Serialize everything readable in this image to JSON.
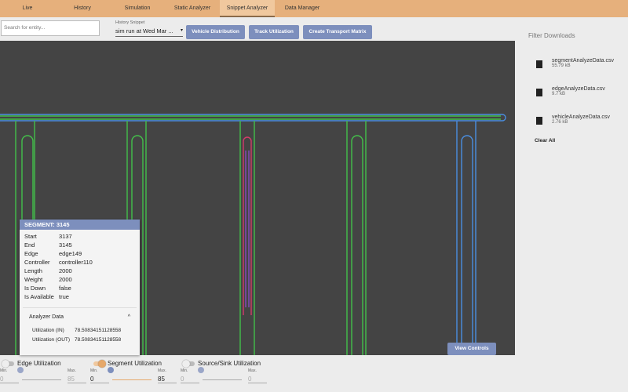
{
  "nav": {
    "tabs": [
      "Live",
      "History",
      "Simulation",
      "Static Analyzer",
      "Snippet Analyzer",
      "Data Manager"
    ],
    "active": 4
  },
  "toolbar": {
    "search_placeholder": "Search for entity...",
    "snippet_label": "History Snippet",
    "snippet_value": "sim run at Wed Mar ...",
    "buttons": [
      "Vehicle Distribution",
      "Track Utilization",
      "Create Transport Matrix"
    ]
  },
  "downloads": {
    "title": "Filter Downloads",
    "files": [
      {
        "name": "segmentAnalyzeData.csv",
        "size": "55.79 kB"
      },
      {
        "name": "edgeAnalyzeData.csv",
        "size": "9.7 kB"
      },
      {
        "name": "vehicleAnalyzeData.csv",
        "size": "2.76 kB"
      }
    ],
    "clear": "Clear All"
  },
  "segment_popup": {
    "title": "SEGMENT: 3145",
    "rows": [
      [
        "Start",
        "3137"
      ],
      [
        "End",
        "3145"
      ],
      [
        "Edge",
        "edge149"
      ],
      [
        "Controller",
        "controller110"
      ],
      [
        "Length",
        "2000"
      ],
      [
        "Weight",
        "2000"
      ],
      [
        "Is Down",
        "false"
      ],
      [
        "Is Available",
        "true"
      ]
    ],
    "analyzer_title": "Analyzer Data",
    "analyzer_rows": [
      [
        "Utilization (IN)",
        "78.50834151128558"
      ],
      [
        "Utilization (OUT)",
        "78.50834151128558"
      ]
    ]
  },
  "view_controls": "View Controls",
  "controls": [
    {
      "label": "Edge Utilization",
      "min_label": "Min.",
      "max_label": "Max.",
      "min": "0",
      "max": "85",
      "on": false
    },
    {
      "label": "Segment Utilization",
      "min_label": "Min.",
      "max_label": "Max.",
      "min": "0",
      "max": "85",
      "on": true
    },
    {
      "label": "Source/Sink Utilization",
      "min_label": "Min.",
      "max_label": "Max.",
      "min": "0",
      "max": "0",
      "on": false
    }
  ]
}
